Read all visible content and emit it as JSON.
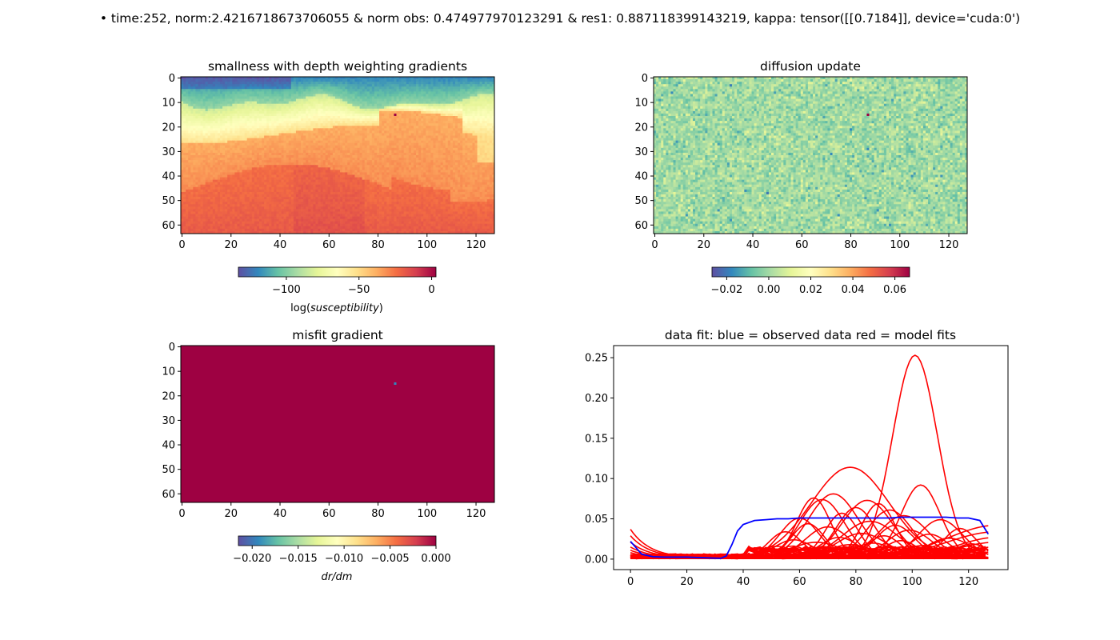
{
  "suptitle": "• time:252, norm:2.4216718673706055 & norm obs: 0.474977970123291 & res1: 0.887118399143219, kappa: tensor([[0.7184]], device='cuda:0')",
  "colormap": [
    "#5e4fa2",
    "#3288bd",
    "#66c2a5",
    "#abdda4",
    "#e6f598",
    "#ffffbf",
    "#fee08b",
    "#fdae61",
    "#f46d43",
    "#d53e4f",
    "#9e0142"
  ],
  "chart_data": [
    {
      "type": "heatmap",
      "title": "smallness with depth weighting gradients",
      "x_ticks": [
        "0",
        "20",
        "40",
        "60",
        "80",
        "100",
        "120"
      ],
      "y_ticks": [
        "0",
        "10",
        "20",
        "30",
        "40",
        "50",
        "60"
      ],
      "xlim": [
        0,
        128
      ],
      "ylim": [
        64,
        0
      ],
      "colorbar": {
        "ticks": [
          "−100",
          "−50",
          "0"
        ],
        "tick_values": [
          -100,
          -50,
          0
        ],
        "range": [
          -133,
          3
        ],
        "label": "log(susceptibility)"
      },
      "highlight_cell": {
        "x": 87,
        "y": 15
      }
    },
    {
      "type": "heatmap",
      "title": "diffusion update",
      "x_ticks": [
        "0",
        "20",
        "40",
        "60",
        "80",
        "100",
        "120"
      ],
      "y_ticks": [
        "0",
        "10",
        "20",
        "30",
        "40",
        "50",
        "60"
      ],
      "xlim": [
        0,
        128
      ],
      "ylim": [
        64,
        0
      ],
      "colorbar": {
        "ticks": [
          "−0.02",
          "0.00",
          "0.02",
          "0.04",
          "0.06"
        ],
        "tick_values": [
          -0.02,
          0,
          0.02,
          0.04,
          0.06
        ],
        "range": [
          -0.027,
          0.067
        ],
        "label": ""
      },
      "highlight_cell": {
        "x": 87,
        "y": 15
      }
    },
    {
      "type": "heatmap",
      "title": "misfit gradient",
      "x_ticks": [
        "0",
        "20",
        "40",
        "60",
        "80",
        "100",
        "120"
      ],
      "y_ticks": [
        "0",
        "10",
        "20",
        "30",
        "40",
        "50",
        "60"
      ],
      "xlim": [
        0,
        128
      ],
      "ylim": [
        64,
        0
      ],
      "colorbar": {
        "ticks": [
          "−0.020",
          "−0.015",
          "−0.010",
          "−0.005",
          "0.000"
        ],
        "tick_values": [
          -0.02,
          -0.015,
          -0.01,
          -0.005,
          0
        ],
        "range": [
          -0.0215,
          0
        ],
        "label": "dr/dm"
      },
      "uniform_value": 0.0,
      "highlight_cell": {
        "x": 87,
        "y": 15,
        "value": -0.0215
      }
    },
    {
      "type": "line",
      "title": "data fit: blue = observed data  red = model fits",
      "xlim": [
        -6,
        134
      ],
      "ylim": [
        -0.013,
        0.265
      ],
      "x_ticks": [
        0,
        20,
        40,
        60,
        80,
        100,
        120
      ],
      "y_ticks": [
        "0.00",
        "0.05",
        "0.10",
        "0.15",
        "0.20",
        "0.25"
      ],
      "y_tick_values": [
        0,
        0.05,
        0.1,
        0.15,
        0.2,
        0.25
      ],
      "observed": {
        "color": "#0000ff",
        "x": [
          0,
          4,
          8,
          12,
          16,
          20,
          24,
          28,
          32,
          34,
          36,
          38,
          40,
          44,
          48,
          52,
          56,
          60,
          64,
          68,
          72,
          76,
          80,
          84,
          88,
          92,
          96,
          100,
          104,
          108,
          112,
          116,
          120,
          124,
          127
        ],
        "y": [
          0.022,
          0.006,
          0.003,
          0.0025,
          0.0025,
          0.0025,
          0.002,
          0.0015,
          0.001,
          0.004,
          0.018,
          0.035,
          0.043,
          0.048,
          0.049,
          0.05,
          0.05,
          0.051,
          0.051,
          0.051,
          0.051,
          0.051,
          0.051,
          0.051,
          0.051,
          0.051,
          0.052,
          0.052,
          0.052,
          0.052,
          0.052,
          0.051,
          0.051,
          0.048,
          0.031
        ]
      },
      "model_fits": {
        "color": "#ff0000",
        "peaks": [
          {
            "c": 101,
            "a": 0.252,
            "w": 8
          },
          {
            "c": 78,
            "a": 0.113,
            "w": 14
          },
          {
            "c": 103,
            "a": 0.091,
            "w": 7
          },
          {
            "c": 72,
            "a": 0.08,
            "w": 9
          },
          {
            "c": 65,
            "a": 0.075,
            "w": 6
          },
          {
            "c": 68,
            "a": 0.073,
            "w": 8
          },
          {
            "c": 84,
            "a": 0.072,
            "w": 9
          },
          {
            "c": 88,
            "a": 0.068,
            "w": 6
          },
          {
            "c": 80,
            "a": 0.063,
            "w": 7
          },
          {
            "c": 92,
            "a": 0.06,
            "w": 8
          },
          {
            "c": 75,
            "a": 0.056,
            "w": 6
          },
          {
            "c": 97,
            "a": 0.053,
            "w": 9
          },
          {
            "c": 60,
            "a": 0.05,
            "w": 7
          },
          {
            "c": 110,
            "a": 0.048,
            "w": 8
          },
          {
            "c": 85,
            "a": 0.046,
            "w": 10
          },
          {
            "c": 63,
            "a": 0.043,
            "w": 6
          },
          {
            "c": 94,
            "a": 0.041,
            "w": 7
          },
          {
            "c": 70,
            "a": 0.039,
            "w": 8
          },
          {
            "c": 117,
            "a": 0.037,
            "w": 6
          },
          {
            "c": 99,
            "a": 0.035,
            "w": 8
          },
          {
            "c": 55,
            "a": 0.033,
            "w": 6
          },
          {
            "c": 82,
            "a": 0.031,
            "w": 9
          },
          {
            "c": 106,
            "a": 0.03,
            "w": 7
          },
          {
            "c": 90,
            "a": 0.028,
            "w": 6
          },
          {
            "c": 74,
            "a": 0.026,
            "w": 7
          },
          {
            "c": 113,
            "a": 0.025,
            "w": 8
          },
          {
            "c": 58,
            "a": 0.023,
            "w": 7
          },
          {
            "c": 96,
            "a": 0.022,
            "w": 6
          },
          {
            "c": 66,
            "a": 0.02,
            "w": 9
          },
          {
            "c": 86,
            "a": 0.019,
            "w": 7
          },
          {
            "c": 121,
            "a": 0.018,
            "w": 6
          },
          {
            "c": 78,
            "a": 0.017,
            "w": 8
          },
          {
            "c": 104,
            "a": 0.016,
            "w": 7
          },
          {
            "c": 52,
            "a": 0.015,
            "w": 6
          },
          {
            "c": 91,
            "a": 0.014,
            "w": 8
          },
          {
            "c": 69,
            "a": 0.013,
            "w": 7
          },
          {
            "c": 109,
            "a": 0.012,
            "w": 6
          },
          {
            "c": 83,
            "a": 0.011,
            "w": 9
          },
          {
            "c": 62,
            "a": 0.01,
            "w": 7
          },
          {
            "c": 98,
            "a": 0.009,
            "w": 8
          },
          {
            "c": 115,
            "a": 0.008,
            "w": 6
          },
          {
            "c": 76,
            "a": 0.007,
            "w": 7
          }
        ],
        "rising_tails": [
          {
            "end": 0.041,
            "w": 5
          },
          {
            "end": 0.033,
            "w": 5
          },
          {
            "end": 0.026,
            "w": 4
          },
          {
            "end": 0.02,
            "w": 4
          },
          {
            "end": 0.014,
            "w": 4
          },
          {
            "end": 0.008,
            "w": 3
          }
        ],
        "left_start": [
          0.036,
          0.028,
          0.02,
          0.014,
          0.01,
          0.007
        ]
      }
    }
  ]
}
